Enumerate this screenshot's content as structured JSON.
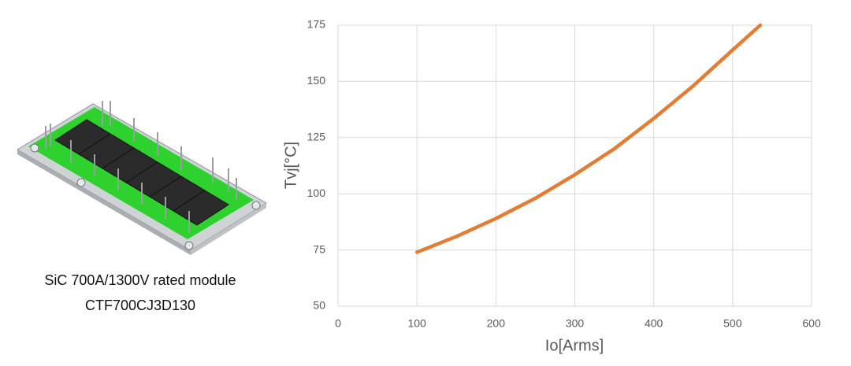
{
  "caption": [
    "SiC 700A/1300V rated module",
    "CTF700CJ3D130"
  ],
  "chart_data": {
    "type": "line",
    "x_label": "Io[Arms]",
    "y_label": "Tvj[°C]",
    "x": [
      100,
      150,
      200,
      250,
      300,
      350,
      400,
      450,
      500,
      535
    ],
    "values": [
      74,
      81,
      89,
      98,
      108.5,
      120,
      133.5,
      148,
      164,
      175
    ],
    "color": "#e57c33",
    "xlim": [
      0,
      600
    ],
    "xticks": [
      0,
      100,
      200,
      300,
      400,
      500,
      600
    ],
    "ylim": [
      50,
      175
    ],
    "yticks": [
      50,
      75,
      100,
      125,
      150,
      175
    ],
    "grid": true
  }
}
